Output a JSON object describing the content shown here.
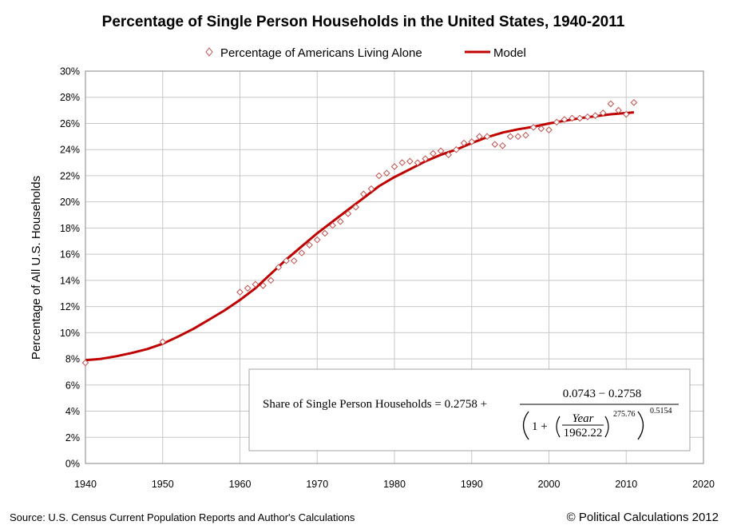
{
  "chart_data": {
    "type": "scatter",
    "title": "Percentage of Single Person Households in the United States, 1940-2011",
    "xlabel": "",
    "ylabel": "Percentage of All U.S. Households",
    "xlim": [
      1940,
      2020
    ],
    "ylim": [
      0,
      30
    ],
    "x_ticks": [
      "1940",
      "1950",
      "1960",
      "1970",
      "1980",
      "1990",
      "2000",
      "2010",
      "2020"
    ],
    "y_ticks": [
      "0%",
      "2%",
      "4%",
      "6%",
      "8%",
      "10%",
      "12%",
      "14%",
      "16%",
      "18%",
      "20%",
      "22%",
      "24%",
      "26%",
      "28%",
      "30%"
    ],
    "grid": true,
    "legend_position": "top",
    "series": [
      {
        "name": "Percentage of Americans Living Alone",
        "style": "markers",
        "marker": "diamond",
        "color": "#c0504d",
        "x": [
          1940,
          1950,
          1960,
          1961,
          1962,
          1963,
          1964,
          1965,
          1966,
          1967,
          1968,
          1969,
          1970,
          1971,
          1972,
          1973,
          1974,
          1975,
          1976,
          1977,
          1978,
          1979,
          1980,
          1981,
          1982,
          1983,
          1984,
          1985,
          1986,
          1987,
          1988,
          1989,
          1990,
          1991,
          1992,
          1993,
          1994,
          1995,
          1996,
          1997,
          1998,
          1999,
          2000,
          2001,
          2002,
          2003,
          2004,
          2005,
          2006,
          2007,
          2008,
          2009,
          2010,
          2011
        ],
        "y": [
          7.7,
          9.3,
          13.1,
          13.4,
          13.7,
          13.6,
          14.0,
          15.0,
          15.5,
          15.5,
          16.1,
          16.7,
          17.1,
          17.6,
          18.2,
          18.5,
          19.1,
          19.6,
          20.6,
          21.0,
          22.0,
          22.2,
          22.7,
          23.0,
          23.1,
          23.0,
          23.3,
          23.7,
          23.9,
          23.6,
          24.0,
          24.5,
          24.6,
          25.0,
          25.0,
          24.4,
          24.3,
          25.0,
          25.0,
          25.1,
          25.7,
          25.6,
          25.5,
          26.1,
          26.3,
          26.4,
          26.4,
          26.5,
          26.6,
          26.8,
          27.5,
          27.0,
          26.7,
          27.6
        ]
      },
      {
        "name": "Model",
        "style": "line",
        "color": "#c00000",
        "x": [
          1940,
          1942,
          1944,
          1946,
          1948,
          1950,
          1952,
          1954,
          1956,
          1958,
          1960,
          1962,
          1964,
          1966,
          1968,
          1970,
          1972,
          1974,
          1976,
          1978,
          1980,
          1982,
          1984,
          1986,
          1988,
          1990,
          1992,
          1994,
          1996,
          1998,
          2000,
          2002,
          2004,
          2006,
          2008,
          2011
        ],
        "y": [
          7.9,
          8.0,
          8.2,
          8.45,
          8.75,
          9.15,
          9.7,
          10.3,
          11.0,
          11.7,
          12.5,
          13.4,
          14.5,
          15.6,
          16.6,
          17.6,
          18.5,
          19.4,
          20.3,
          21.2,
          21.9,
          22.5,
          23.1,
          23.6,
          24.0,
          24.5,
          24.95,
          25.3,
          25.55,
          25.75,
          26.0,
          26.2,
          26.4,
          26.55,
          26.7,
          26.85
        ]
      }
    ]
  },
  "formula": {
    "lhs": "Share of Single Person Households = 0.2758 +",
    "numerator": "0.0743 − 0.2758",
    "one_plus": "1 +",
    "year": "Year",
    "denom_value": "1962.22",
    "exponent_inner": "275.76",
    "exponent_outer": "0.5154"
  },
  "footer": {
    "source": "Source: U.S. Census Current Population Reports and Author's Calculations",
    "credit": "© Political Calculations 2012"
  }
}
